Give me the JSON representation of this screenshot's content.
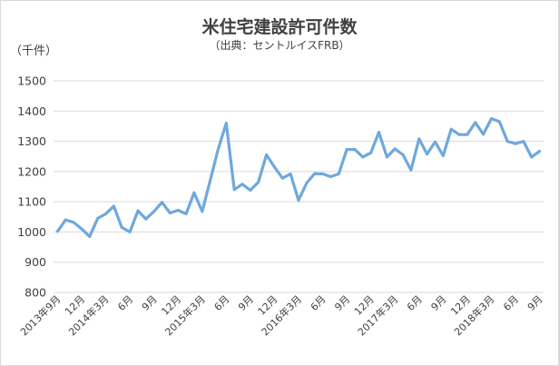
{
  "chart_data": {
    "type": "line",
    "title": "米住宅建設許可件数",
    "subtitle": "（出典：セントルイスFRB）",
    "ylabel": "（千件）",
    "xlabel": "",
    "ylim": [
      800,
      1500
    ],
    "yticks": [
      800,
      900,
      1000,
      1100,
      1200,
      1300,
      1400,
      1500
    ],
    "grid": true,
    "legend": "none",
    "x_tick_labels": [
      {
        "i": 0,
        "label": "2013年9月"
      },
      {
        "i": 3,
        "label": "12月"
      },
      {
        "i": 6,
        "label": "2014年3月"
      },
      {
        "i": 9,
        "label": "6月"
      },
      {
        "i": 12,
        "label": "9月"
      },
      {
        "i": 15,
        "label": "12月"
      },
      {
        "i": 18,
        "label": "2015年3月"
      },
      {
        "i": 21,
        "label": "6月"
      },
      {
        "i": 24,
        "label": "9月"
      },
      {
        "i": 27,
        "label": "12月"
      },
      {
        "i": 30,
        "label": "2016年3月"
      },
      {
        "i": 33,
        "label": "6月"
      },
      {
        "i": 36,
        "label": "9月"
      },
      {
        "i": 39,
        "label": "12月"
      },
      {
        "i": 42,
        "label": "2017年3月"
      },
      {
        "i": 45,
        "label": "6月"
      },
      {
        "i": 48,
        "label": "9月"
      },
      {
        "i": 51,
        "label": "12月"
      },
      {
        "i": 54,
        "label": "2018年3月"
      },
      {
        "i": 57,
        "label": "6月"
      },
      {
        "i": 60,
        "label": "9月"
      }
    ],
    "series": [
      {
        "color": "#6fa8dc",
        "values": [
          1002,
          1040,
          1032,
          1010,
          985,
          1045,
          1060,
          1085,
          1015,
          1000,
          1070,
          1043,
          1068,
          1098,
          1063,
          1072,
          1060,
          1130,
          1068,
          1170,
          1275,
          1360,
          1140,
          1158,
          1138,
          1165,
          1255,
          1215,
          1178,
          1192,
          1105,
          1162,
          1193,
          1192,
          1183,
          1192,
          1273,
          1273,
          1248,
          1262,
          1330,
          1248,
          1275,
          1255,
          1205,
          1308,
          1258,
          1298,
          1252,
          1340,
          1322,
          1322,
          1362,
          1323,
          1375,
          1365,
          1300,
          1292,
          1300,
          1248,
          1267
        ]
      }
    ]
  }
}
